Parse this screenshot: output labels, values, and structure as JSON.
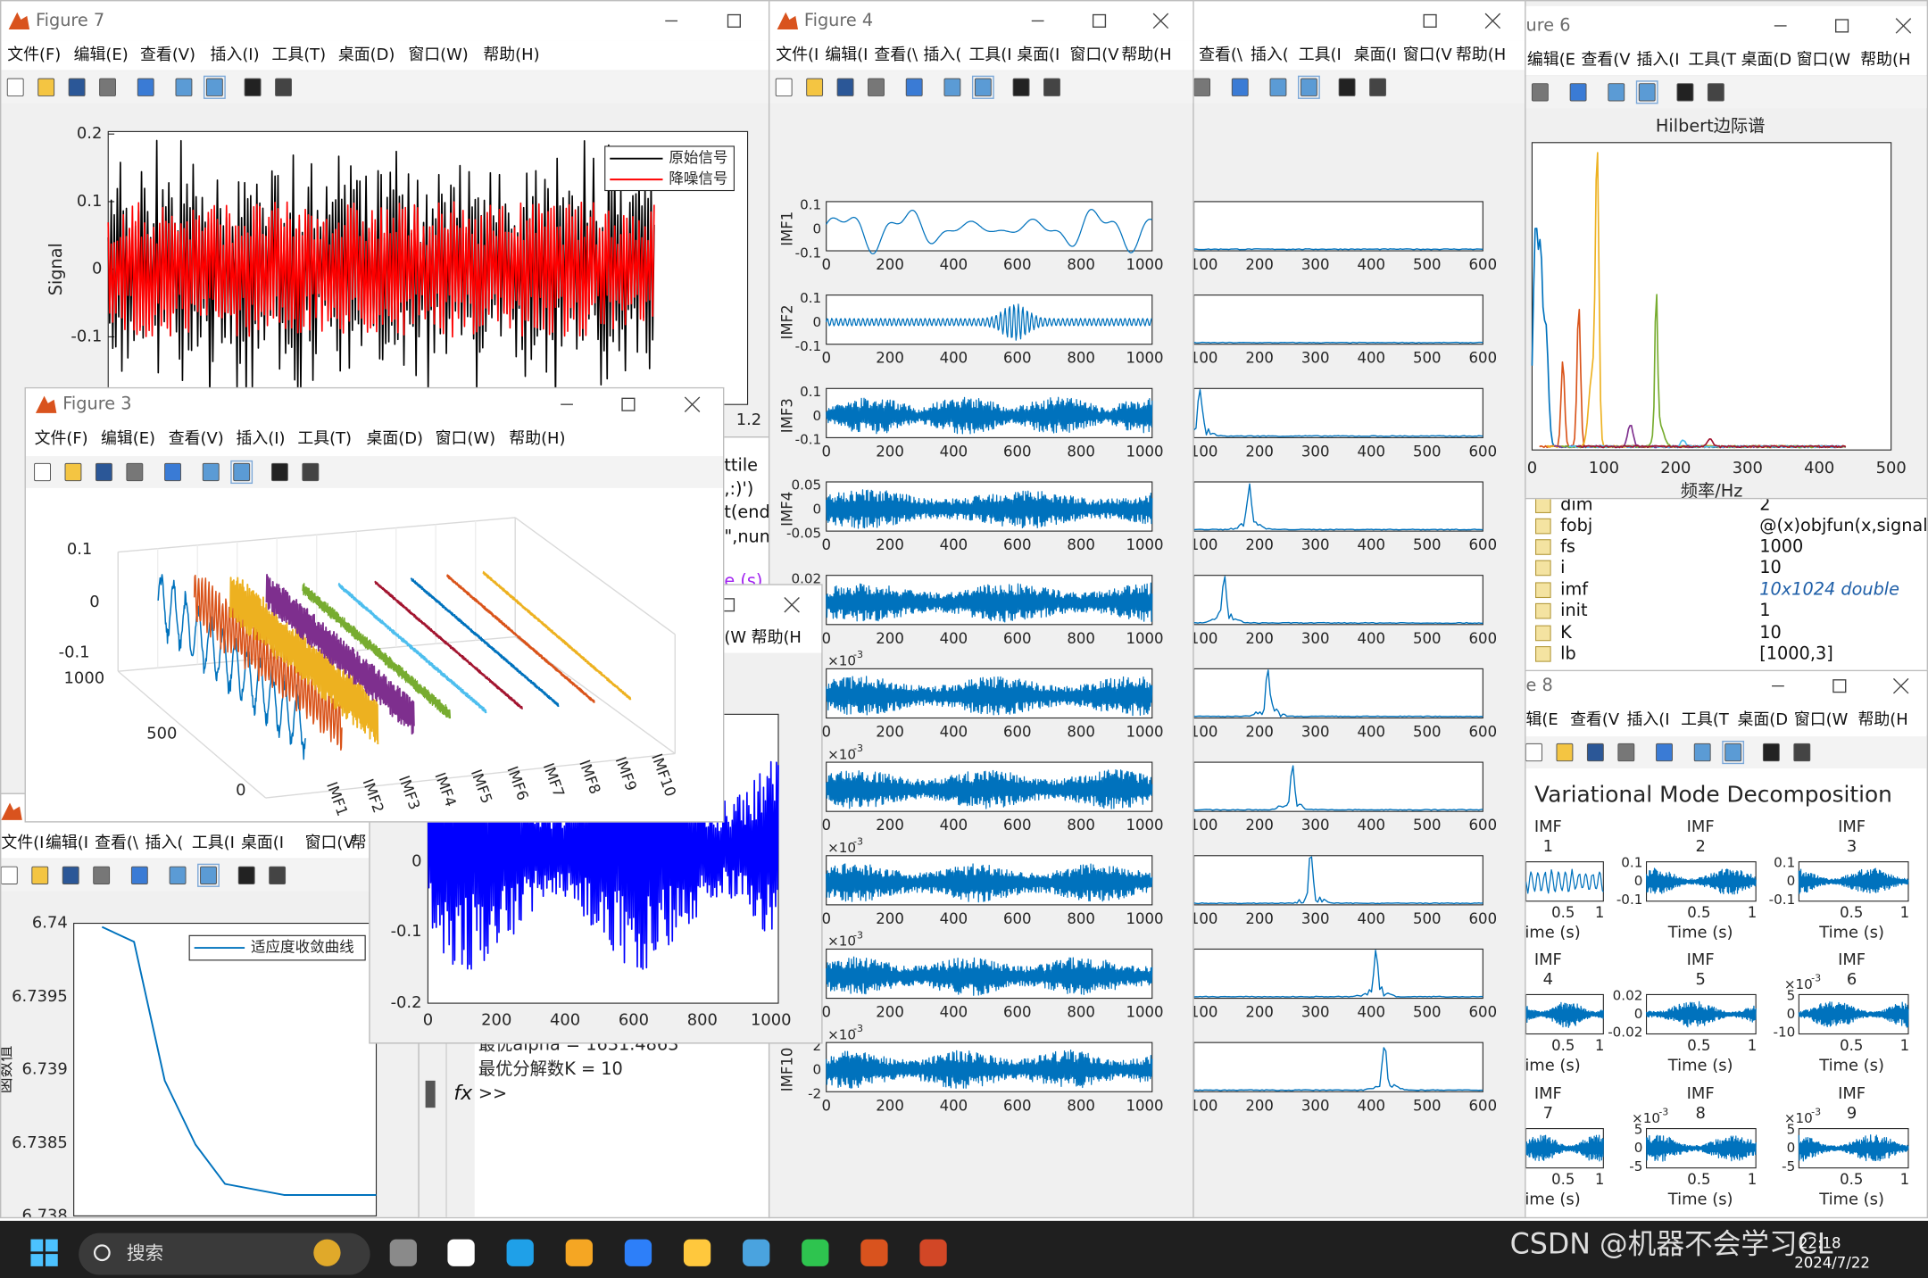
{
  "figure7": {
    "title": "Figure 7",
    "menu": [
      "文件(F)",
      "编辑(E)",
      "查看(V)",
      "插入(I)",
      "工具(T)",
      "桌面(D)",
      "窗口(W)",
      "帮助(H)"
    ],
    "yticks": [
      "0.2",
      "0.1",
      "0",
      "-0.1"
    ],
    "ylabel": "Signal",
    "legend": [
      "原始信号",
      "降噪信号"
    ],
    "xtick_visible": "1.2"
  },
  "figure4": {
    "title": "Figure 4",
    "menu": [
      "文件(I",
      "编辑(I",
      "查看(\\",
      "插入(",
      "工具(I",
      "桌面(I",
      "窗口(V",
      "帮助(H"
    ],
    "xticks": [
      "0",
      "200",
      "400",
      "600",
      "800",
      "1000"
    ],
    "exponent_base": "×10",
    "subplots": [
      {
        "ylabel": "IMF1",
        "yticks": [
          "0.1",
          "0",
          "-0.1"
        ]
      },
      {
        "ylabel": "IMF2",
        "yticks": [
          "0.1",
          "0",
          "-0.1"
        ]
      },
      {
        "ylabel": "IMF3",
        "yticks": [
          "0.1",
          "0",
          "-0.1"
        ]
      },
      {
        "ylabel": "IMF4",
        "yticks": [
          "0.05",
          "0",
          "-0.05"
        ]
      },
      {
        "yticks": [
          "0.02"
        ]
      },
      {
        "exponent": "-3"
      },
      {
        "exponent": "-3"
      },
      {
        "exponent": "-3"
      },
      {
        "exponent": "-3"
      },
      {
        "ylabel": "IMF10",
        "exponent": "-3",
        "yticks": [
          "2",
          "0",
          "-2"
        ]
      }
    ]
  },
  "spectrum_window": {
    "menu": [
      "查看(\\",
      "插入(",
      "工具(I",
      "桌面(I",
      "窗口(V",
      "帮助(H"
    ],
    "xticks": [
      "100",
      "200",
      "300",
      "400",
      "500",
      "600"
    ]
  },
  "figure6": {
    "title": "ure 6",
    "menu": [
      "编辑(E",
      "查看(V",
      "插入(I",
      "工具(T",
      "桌面(D",
      "窗口(W",
      "帮助(H"
    ],
    "plot_title": "Hilbert边际谱",
    "xlabel": "频率/Hz",
    "xticks": [
      "0",
      "100",
      "200",
      "300",
      "400",
      "500"
    ]
  },
  "workspace": {
    "rows": [
      [
        "dim",
        "2"
      ],
      [
        "fobj",
        "@(x)objfun(x,signal,lb,"
      ],
      [
        "fs",
        "1000"
      ],
      [
        "i",
        "10"
      ],
      [
        "imf",
        "10x1024 double"
      ],
      [
        "init",
        "1"
      ],
      [
        "K",
        "10"
      ],
      [
        "lb",
        "[1000,3]"
      ]
    ]
  },
  "figure8": {
    "title": "e 8",
    "menu": [
      "辑(E",
      "查看(V",
      "插入(I",
      "工具(T",
      "桌面(D",
      "窗口(W",
      "帮助(H"
    ],
    "plot_title": "Variational Mode Decomposition",
    "subplot_label": "IMF",
    "xticks": [
      "0.5",
      "1"
    ],
    "xlabel": "Time (s)",
    "exponent_base": "×10",
    "subplots": [
      {
        "index": "1",
        "yticks": []
      },
      {
        "index": "2",
        "yticks": [
          "0.1",
          "0",
          "-0.1"
        ]
      },
      {
        "index": "3",
        "yticks": [
          "0.1",
          "0",
          "-0.1"
        ]
      },
      {
        "index": "4",
        "yticks": []
      },
      {
        "index": "5",
        "yticks": [
          "0.02",
          "0",
          "-0.02"
        ]
      },
      {
        "index": "6",
        "yticks": [
          "5",
          "0",
          "-10"
        ],
        "exponent": "-3"
      },
      {
        "index": "7",
        "yticks": []
      },
      {
        "index": "8",
        "yticks": [
          "5",
          "0",
          "-5"
        ],
        "exponent": "-3"
      },
      {
        "index": "9",
        "yticks": [
          "5",
          "0",
          "-5"
        ],
        "exponent": "-3"
      }
    ]
  },
  "figure3": {
    "title": "Figure 3",
    "menu": [
      "文件(F)",
      "编辑(E)",
      "查看(V)",
      "插入(I)",
      "工具(T)",
      "桌面(D)",
      "窗口(W)",
      "帮助(H)"
    ],
    "zticks": [
      "0.1",
      "0",
      "-0.1"
    ],
    "yticks": [
      "1000",
      "500",
      "0"
    ],
    "xticks": [
      "IMF1",
      "IMF2",
      "IMF3",
      "IMF4",
      "IMF5",
      "IMF6",
      "IMF7",
      "IMF8",
      "IMF9",
      "IMF10"
    ]
  },
  "fitness_window": {
    "menu": [
      "文件(I",
      "编辑(I",
      "查看(\\",
      "插入(",
      "工具(I",
      "桌面(I",
      "窗口(V",
      "帮"
    ],
    "yticks": [
      "6.74",
      "6.7395",
      "6.739",
      "6.7385",
      "6.738"
    ],
    "ylabel": "函数值",
    "legend": "适应度收敛曲线"
  },
  "signal_window": {
    "menu": [
      "(W",
      "帮助(H"
    ],
    "yticks": [
      "0",
      "-0.1",
      "-0.2"
    ],
    "xticks": [
      "0",
      "200",
      "400",
      "600",
      "800",
      "1000"
    ]
  },
  "editor": {
    "code_lines": [
      "ttile",
      ",:)')",
      "t(end",
      "\",num",
      "e (s)"
    ]
  },
  "command_window": {
    "lines": [
      "最优alpha = 1631.4863",
      "最优分解数K = 10"
    ],
    "fx": "fx",
    "prompt": ">>"
  },
  "taskbar": {
    "search": "搜索",
    "time": "22:18",
    "date": "2024/7/22"
  },
  "watermark": "CSDN @机器不会学习CL"
}
